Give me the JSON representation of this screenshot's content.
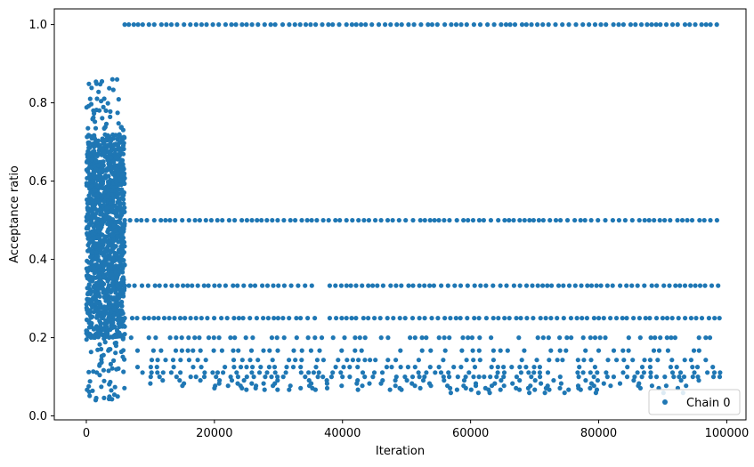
{
  "chart_data": {
    "type": "scatter",
    "title": "",
    "xlabel": "Iteration",
    "ylabel": "Acceptance ratio",
    "xlim": [
      -5000,
      103000
    ],
    "ylim": [
      -0.01,
      1.04
    ],
    "xticks": [
      0,
      20000,
      40000,
      60000,
      80000,
      100000
    ],
    "yticks": [
      0.0,
      0.2,
      0.4,
      0.6,
      0.8,
      1.0
    ],
    "xtick_labels": [
      "0",
      "20000",
      "40000",
      "60000",
      "80000",
      "100000"
    ],
    "ytick_labels": [
      "0.0",
      "0.2",
      "0.4",
      "0.6",
      "0.8",
      "1.0"
    ],
    "grid": false,
    "legend_position": "lower-right",
    "series": [
      {
        "name": "Chain 0",
        "color": "#1f77b4",
        "marker": "circle",
        "burn_in": {
          "x_range": [
            0,
            6000
          ],
          "y_range": [
            0.04,
            0.86
          ],
          "dense_band": [
            0.2,
            0.72
          ]
        },
        "plateaus": [
          {
            "y": 1.0,
            "segments": [
              [
                6000,
                99000
              ]
            ]
          },
          {
            "y": 0.5,
            "segments": [
              [
                6000,
                99000
              ]
            ]
          },
          {
            "y": 0.333,
            "segments": [
              [
                6000,
                36000
              ],
              [
                38000,
                99000
              ]
            ]
          },
          {
            "y": 0.25,
            "segments": [
              [
                6000,
                36000
              ],
              [
                38000,
                99000
              ]
            ]
          },
          {
            "y": 0.2,
            "segments": [
              [
                7000,
                99000
              ]
            ]
          },
          {
            "y": 0.167,
            "segments": [
              [
                8000,
                99000
              ]
            ]
          },
          {
            "y": 0.143,
            "segments": [
              [
                8000,
                99000
              ]
            ]
          },
          {
            "y": 0.125,
            "segments": [
              [
                8000,
                99000
              ]
            ]
          },
          {
            "y": 0.111,
            "segments": [
              [
                8000,
                99000
              ]
            ]
          },
          {
            "y": 0.1,
            "segments": [
              [
                9000,
                99000
              ]
            ]
          },
          {
            "y": 0.091,
            "segments": [
              [
                10000,
                99000
              ]
            ]
          },
          {
            "y": 0.083,
            "segments": [
              [
                10000,
                99000
              ]
            ]
          },
          {
            "y": 0.077,
            "segments": [
              [
                15000,
                97000
              ]
            ]
          },
          {
            "y": 0.071,
            "segments": [
              [
                20000,
                95000
              ]
            ]
          },
          {
            "y": 0.067,
            "segments": [
              [
                25000,
                90000
              ]
            ]
          },
          {
            "y": 0.059,
            "segments": [
              [
                55000,
                96000
              ]
            ]
          }
        ]
      }
    ]
  }
}
